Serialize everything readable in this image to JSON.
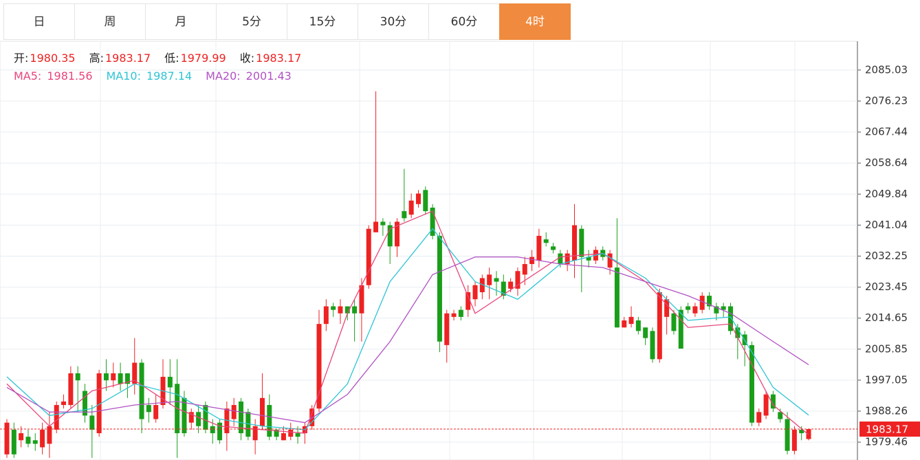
{
  "tabs": [
    "日",
    "周",
    "月",
    "5分",
    "15分",
    "30分",
    "60分",
    "4时"
  ],
  "active_tab": 7,
  "chart_data": {
    "type": "candlestick",
    "ohlc_labels": [
      "开:",
      "高:",
      "低:",
      "收:"
    ],
    "up_color": "#ee2222",
    "down_color": "#1a9e1a",
    "ylim": [
      1974.4,
      2093.2
    ],
    "yticks": [
      1979.46,
      1988.26,
      1997.05,
      2005.85,
      2014.65,
      2023.45,
      2032.25,
      2041.04,
      2049.84,
      2058.64,
      2067.44,
      2076.23,
      2085.03
    ],
    "grid": true,
    "open": [
      1976,
      1983,
      1980,
      1981,
      1980,
      1978,
      1979,
      1983,
      1990,
      1990,
      1999,
      1994,
      1987,
      1982,
      1999,
      1997,
      1999,
      1999,
      1996,
      2002,
      1990,
      1986,
      1990,
      1998,
      1996,
      1992,
      1985,
      1988,
      1990,
      1984,
      1985,
      1982,
      1986,
      1991,
      1988,
      1980,
      1984,
      1990,
      1983,
      1980,
      1981,
      1982,
      1982,
      1984,
      1989,
      2013,
      2018,
      2016,
      2018,
      2018,
      2016,
      2024,
      2039,
      2042,
      2041,
      2035,
      2045,
      2044,
      2047,
      2051,
      2046,
      2038,
      2007,
      2015,
      2017,
      2017,
      2020,
      2022,
      2024,
      2026,
      2025,
      2023,
      2023,
      2027,
      2030,
      2031,
      2037,
      2035,
      2033,
      2030,
      2031,
      2040,
      2032,
      2031,
      2034,
      2029,
      2029,
      2012,
      2013,
      2014,
      2012,
      2011,
      2003,
      2015,
      2016,
      2017,
      2018,
      2016,
      2017,
      2021,
      2018,
      2018,
      2018,
      2012,
      2010,
      2007,
      1985,
      1987,
      1993,
      1988,
      1986,
      1977,
      1983,
      1980.35
    ],
    "high": [
      1986,
      1985,
      1984,
      1983,
      1982,
      1985,
      1988,
      1991,
      1993,
      2001,
      2001,
      1996,
      1990,
      2000,
      2003,
      2002,
      2002,
      1999,
      2009,
      2003,
      1992,
      1993,
      2003,
      2003,
      2003,
      1994,
      1989,
      1990,
      1991,
      1986,
      1986,
      1991,
      1992,
      1992,
      1989,
      1986,
      1999,
      1993,
      1983,
      1984,
      1985,
      1984,
      1985,
      1990,
      2017,
      2020,
      2019,
      2020,
      2018,
      2020,
      2026,
      2041,
      2079,
      2043,
      2042,
      2043,
      2057,
      2050,
      2051,
      2052,
      2047,
      2039,
      2017,
      2017,
      2018,
      2024,
      2025,
      2027,
      2029,
      2028,
      2027,
      2026,
      2029,
      2032,
      2034,
      2040,
      2039,
      2036,
      2034,
      2034,
      2047,
      2041,
      2034,
      2035,
      2035,
      2034,
      2043,
      2015,
      2018,
      2015,
      2012,
      2012,
      2023,
      2021,
      2017,
      2018,
      2019,
      2019,
      2022,
      2022,
      2019,
      2019,
      2019,
      2013,
      2011,
      2008,
      1989,
      1994,
      1994,
      1989,
      1988,
      1984,
      1984,
      1983.17
    ],
    "low": [
      1975,
      1975,
      1978,
      1978,
      1977,
      1976,
      1975,
      1982,
      1989,
      1989,
      1988,
      1985,
      1975,
      1981,
      1994,
      1995,
      1994,
      1992,
      1993,
      1982,
      1985,
      1985,
      1989,
      1990,
      1975,
      1981,
      1983,
      1982,
      1982,
      1979,
      1979,
      1977,
      1984,
      1980,
      1980,
      1976,
      1983,
      1980,
      1980,
      1980,
      1980,
      1979,
      1979,
      1983,
      1988,
      2011,
      2015,
      2013,
      2014,
      2008,
      2008,
      2023,
      2039,
      2038,
      2030,
      2032,
      2042,
      2043,
      2046,
      2044,
      2037,
      2005,
      2002,
      2014,
      2014,
      2015,
      2018,
      2020,
      2020,
      2021,
      2020,
      2022,
      2021,
      2024,
      2028,
      2029,
      2035,
      2033,
      2029,
      2028,
      2026,
      2022,
      2029,
      2030,
      2031,
      2027,
      2012,
      2012,
      2012,
      2010,
      2007,
      2002,
      2002,
      2010,
      2010,
      2006,
      2016,
      2015,
      2016,
      2017,
      2014,
      2015,
      2010,
      2003,
      2001,
      1984,
      1984,
      1986,
      1988,
      1985,
      1976,
      1976,
      1980,
      1979.99
    ],
    "close": [
      1985,
      1976,
      1982,
      1979,
      1979,
      1983,
      1984,
      1990,
      1991,
      1999,
      1997,
      1987,
      1983,
      1999,
      1997,
      1999,
      1996,
      1996,
      2002,
      1986,
      1988,
      1990,
      1998,
      1995,
      1982,
      1982,
      1988,
      1984,
      1983,
      1982,
      1980,
      1989,
      1990,
      1982,
      1981,
      1984,
      1992,
      1981,
      1981,
      1982,
      1983,
      1981,
      1984,
      1989,
      2013,
      2018,
      2017,
      2018,
      2016,
      2016,
      2024,
      2040,
      2042,
      2041,
      2035,
      2042,
      2043,
      2048,
      2050,
      2045,
      2038,
      2008,
      2016,
      2016,
      2015,
      2022,
      2024,
      2026,
      2027,
      2025,
      2021,
      2025,
      2028,
      2030,
      2032,
      2038,
      2036,
      2034,
      2030,
      2033,
      2041,
      2032,
      2031,
      2034,
      2032,
      2033,
      2012,
      2014,
      2015,
      2011,
      2009,
      2003,
      2022,
      2020,
      2011,
      2006,
      2017,
      2018,
      2021,
      2018,
      2016,
      2017,
      2011,
      2009,
      2007,
      1985,
      1988,
      1993,
      1989,
      1986,
      1977,
      1983,
      1982,
      1983.17
    ],
    "series": [
      {
        "name": "MA5:",
        "color": "#e8457a",
        "x": [
          0,
          6,
          12,
          18,
          24,
          30,
          36,
          42,
          48,
          54,
          60,
          66,
          72,
          78,
          84,
          90,
          96,
          102,
          108,
          113
        ],
        "values": [
          1996,
          1984,
          1994,
          1997,
          1989,
          1984,
          1983,
          1982,
          2016,
          2040,
          2045,
          2016,
          2024,
          2032,
          2033,
          2025,
          2012,
          2013,
          1990,
          1981.56
        ]
      },
      {
        "name": "MA10:",
        "color": "#2ec4d4",
        "x": [
          0,
          6,
          12,
          18,
          24,
          30,
          36,
          42,
          48,
          54,
          60,
          66,
          72,
          78,
          84,
          90,
          96,
          102,
          108,
          113
        ],
        "values": [
          1998,
          1987,
          1989,
          1996,
          1993,
          1986,
          1984,
          1983,
          1996,
          2025,
          2040,
          2025,
          2020,
          2030,
          2033,
          2026,
          2014,
          2015,
          1995,
          1987.14
        ]
      },
      {
        "name": "MA20:",
        "color": "#b152c4",
        "x": [
          0,
          6,
          12,
          18,
          24,
          30,
          36,
          42,
          48,
          54,
          60,
          66,
          72,
          78,
          84,
          90,
          96,
          102,
          108,
          113
        ],
        "values": [
          1995,
          1988,
          1988,
          1990,
          1991,
          1989,
          1987,
          1985,
          1993,
          2008,
          2027,
          2032,
          2032,
          2030,
          2029,
          2025,
          2021,
          2016,
          2008,
          2001.43
        ]
      }
    ]
  }
}
